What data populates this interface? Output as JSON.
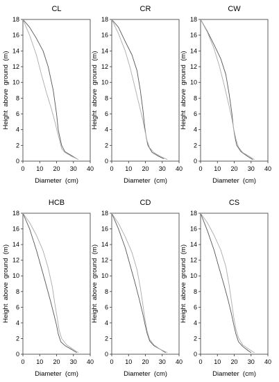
{
  "chart_data": [
    {
      "type": "line",
      "title": "CL",
      "xlabel": "Diameter  (cm)",
      "ylabel": "Height  above  ground  (m)",
      "xlim": [
        0,
        40
      ],
      "ylim": [
        0,
        18
      ],
      "xticks": [
        "0",
        "10",
        "20",
        "30",
        "40"
      ],
      "yticks": [
        "0",
        "2",
        "4",
        "6",
        "8",
        "10",
        "12",
        "14",
        "16",
        "18"
      ],
      "grid": false,
      "legend": "none",
      "series": [
        {
          "color": "#555555",
          "x": [
            0,
            4,
            8,
            12,
            15,
            18,
            20,
            21,
            22,
            23,
            25,
            29,
            32
          ],
          "y": [
            18,
            17,
            15.6,
            14,
            12,
            9,
            6,
            4,
            3,
            2,
            1.2,
            0.7,
            0.3
          ]
        },
        {
          "color": "#aaaaaa",
          "x": [
            0,
            4,
            8,
            11,
            14,
            17,
            19,
            20.5,
            22,
            23,
            25,
            29,
            33
          ],
          "y": [
            18,
            16,
            13.5,
            11,
            8.7,
            6.6,
            5,
            3.7,
            2.5,
            1.6,
            1.1,
            0.6,
            0.2
          ]
        }
      ]
    },
    {
      "type": "line",
      "title": "CR",
      "xlabel": "Diameter  (cm)",
      "ylabel": "Height  above  ground  (m)",
      "xlim": [
        0,
        40
      ],
      "ylim": [
        0,
        18
      ],
      "xticks": [
        "0",
        "10",
        "20",
        "30",
        "40"
      ],
      "yticks": [
        "0",
        "2",
        "4",
        "6",
        "8",
        "10",
        "12",
        "14",
        "16",
        "18"
      ],
      "grid": false,
      "legend": "none",
      "series": [
        {
          "color": "#555555",
          "x": [
            0,
            4,
            8,
            12,
            15,
            17,
            18.5,
            19.5,
            20.5,
            21.5,
            24,
            28,
            31
          ],
          "y": [
            18,
            17,
            15.2,
            13.5,
            11.5,
            9,
            6.5,
            4.5,
            3,
            2,
            1.1,
            0.6,
            0.3
          ]
        },
        {
          "color": "#aaaaaa",
          "x": [
            0,
            4,
            8,
            11,
            14,
            16.5,
            18.5,
            19.8,
            21,
            22.5,
            25,
            29,
            33
          ],
          "y": [
            18,
            16.2,
            14,
            11.8,
            9.2,
            7,
            5.2,
            3.8,
            2.6,
            1.7,
            1.1,
            0.6,
            0.2
          ]
        }
      ]
    },
    {
      "type": "line",
      "title": "CW",
      "xlabel": "Diameter  (cm)",
      "ylabel": "Height  above  ground  (m)",
      "xlim": [
        0,
        40
      ],
      "ylim": [
        0,
        18
      ],
      "xticks": [
        "0",
        "10",
        "20",
        "30",
        "40"
      ],
      "yticks": [
        "0",
        "2",
        "4",
        "6",
        "8",
        "10",
        "12",
        "14",
        "16",
        "18"
      ],
      "grid": false,
      "legend": "none",
      "series": [
        {
          "color": "#555555",
          "x": [
            0,
            4,
            8,
            12,
            15,
            17,
            18.5,
            19.5,
            20.5,
            21.5,
            24,
            28,
            31
          ],
          "y": [
            18,
            16.5,
            14.8,
            13,
            11,
            8.5,
            6.2,
            4.3,
            3,
            2,
            1.2,
            0.6,
            0.2
          ]
        },
        {
          "color": "#aaaaaa",
          "x": [
            0,
            4,
            8,
            11,
            14,
            16.5,
            18.5,
            19.8,
            21,
            22.5,
            25,
            29,
            32
          ],
          "y": [
            18,
            16.4,
            14.3,
            12.2,
            9.7,
            7.4,
            5.5,
            4,
            2.8,
            1.8,
            1.1,
            0.6,
            0.2
          ]
        }
      ]
    },
    {
      "type": "line",
      "title": "HCB",
      "xlabel": "Diameter  (cm)",
      "ylabel": "Height  above  ground  (m)",
      "xlim": [
        0,
        40
      ],
      "ylim": [
        0,
        18
      ],
      "xticks": [
        "0",
        "10",
        "20",
        "30",
        "40"
      ],
      "yticks": [
        "0",
        "2",
        "4",
        "6",
        "8",
        "10",
        "12",
        "14",
        "16",
        "18"
      ],
      "grid": false,
      "legend": "none",
      "series": [
        {
          "color": "#555555",
          "x": [
            0,
            4,
            8,
            11,
            14,
            16.5,
            18.5,
            20,
            21,
            22.5,
            25,
            29,
            32
          ],
          "y": [
            18,
            16,
            13.3,
            11,
            8.7,
            6.7,
            5,
            3.7,
            2.6,
            1.6,
            1.1,
            0.6,
            0.2
          ]
        },
        {
          "color": "#aaaaaa",
          "x": [
            0,
            4,
            8,
            12,
            15,
            17.5,
            19,
            20.5,
            21.5,
            23,
            26,
            30,
            33
          ],
          "y": [
            18,
            16.8,
            15.2,
            13.2,
            11,
            8.6,
            6.4,
            4.5,
            3.1,
            2,
            1.2,
            0.6,
            0.2
          ]
        }
      ]
    },
    {
      "type": "line",
      "title": "CD",
      "xlabel": "Diameter  (cm)",
      "ylabel": "Height  above  ground  (m)",
      "xlim": [
        0,
        40
      ],
      "ylim": [
        0,
        18
      ],
      "xticks": [
        "0",
        "10",
        "20",
        "30",
        "40"
      ],
      "yticks": [
        "0",
        "2",
        "4",
        "6",
        "8",
        "10",
        "12",
        "14",
        "16",
        "18"
      ],
      "grid": false,
      "legend": "none",
      "series": [
        {
          "color": "#555555",
          "x": [
            0,
            4,
            8,
            11,
            14,
            16.5,
            18.5,
            19.8,
            21,
            22.5,
            25,
            29,
            32
          ],
          "y": [
            18,
            16,
            13.6,
            11.3,
            9,
            6.9,
            5.1,
            3.8,
            2.7,
            1.7,
            1.1,
            0.6,
            0.2
          ]
        },
        {
          "color": "#aaaaaa",
          "x": [
            0,
            4,
            8,
            12,
            15,
            17,
            18.5,
            19.8,
            21,
            22.5,
            25,
            29,
            33
          ],
          "y": [
            18,
            16.7,
            15,
            13,
            10.8,
            8.5,
            6.3,
            4.4,
            3,
            1.9,
            1.2,
            0.6,
            0.2
          ]
        }
      ]
    },
    {
      "type": "line",
      "title": "CS",
      "xlabel": "Diameter  (cm)",
      "ylabel": "Height  above  ground  (m)",
      "xlim": [
        0,
        40
      ],
      "ylim": [
        0,
        18
      ],
      "xticks": [
        "0",
        "10",
        "20",
        "30",
        "40"
      ],
      "yticks": [
        "0",
        "2",
        "4",
        "6",
        "8",
        "10",
        "12",
        "14",
        "16",
        "18"
      ],
      "grid": false,
      "legend": "none",
      "series": [
        {
          "color": "#555555",
          "x": [
            0,
            4,
            8,
            11,
            14,
            16.5,
            18.5,
            19.8,
            21,
            22.5,
            25,
            28,
            30
          ],
          "y": [
            18,
            15.8,
            13.3,
            11,
            8.8,
            6.8,
            5,
            3.7,
            2.6,
            1.6,
            1,
            0.5,
            0.2
          ]
        },
        {
          "color": "#aaaaaa",
          "x": [
            0,
            4,
            8,
            12,
            15,
            17,
            18.5,
            19.8,
            21,
            22.5,
            25,
            29,
            32
          ],
          "y": [
            18,
            16.8,
            15.2,
            13.3,
            11.2,
            8.8,
            6.5,
            4.6,
            3.2,
            2.1,
            1.2,
            0.6,
            0.2
          ]
        }
      ]
    }
  ]
}
